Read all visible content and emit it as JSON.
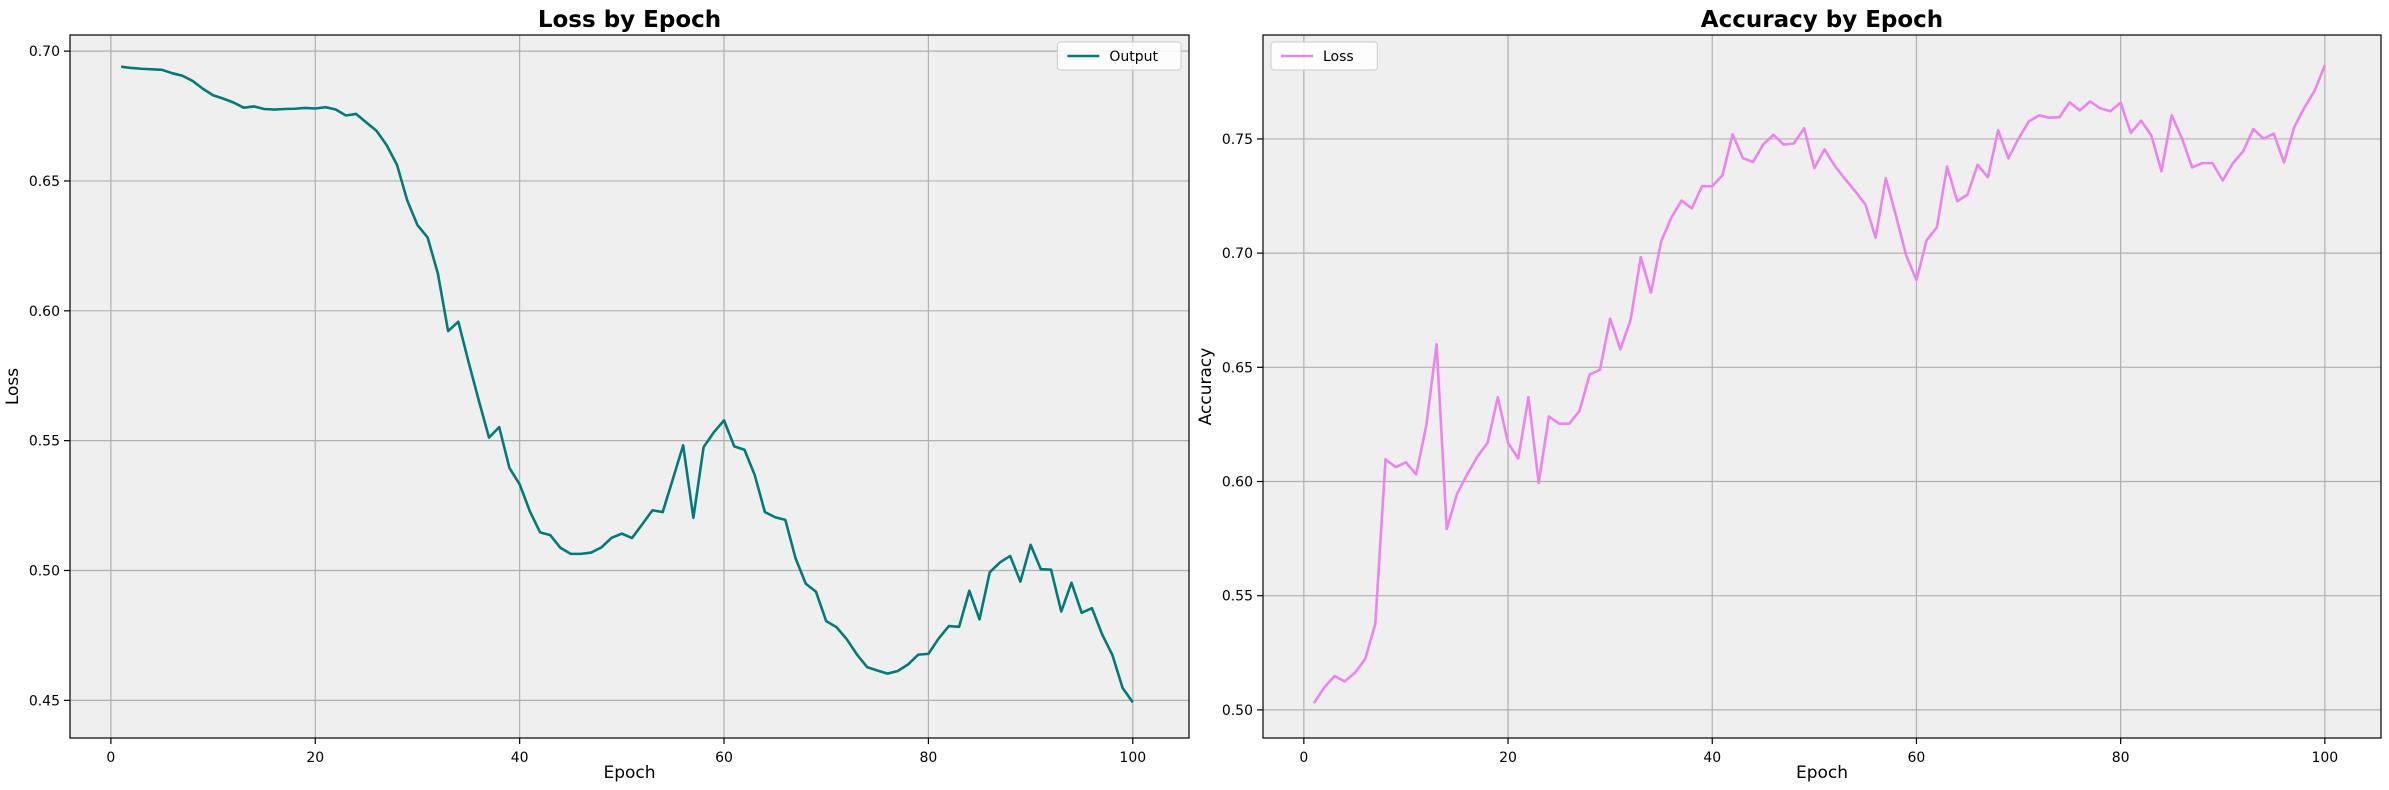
{
  "chart_data": [
    {
      "type": "line",
      "title": "Loss by Epoch",
      "xlabel": "Epoch",
      "ylabel": "Loss",
      "xlim": [
        -4,
        105.5
      ],
      "ylim": [
        0.4355,
        0.7062
      ],
      "xticks": [
        0,
        20,
        40,
        60,
        80,
        100
      ],
      "yticks": [
        0.45,
        0.5,
        0.55,
        0.6,
        0.65,
        0.7
      ],
      "ytick_labels": [
        "0.45",
        "0.50",
        "0.55",
        "0.60",
        "0.65",
        "0.70"
      ],
      "grid": true,
      "legend_position": "top-right",
      "colors": {
        "line": "#007b7b",
        "background": "#efefef"
      },
      "series": [
        {
          "name": "Output",
          "x": [
            1,
            2,
            3,
            4,
            5,
            6,
            7,
            8,
            9,
            10,
            11,
            12,
            13,
            14,
            15,
            16,
            17,
            18,
            19,
            20,
            21,
            22,
            23,
            24,
            25,
            26,
            27,
            28,
            29,
            30,
            31,
            32,
            33,
            34,
            35,
            36,
            37,
            38,
            39,
            40,
            41,
            42,
            43,
            44,
            45,
            46,
            47,
            48,
            49,
            50,
            51,
            52,
            53,
            54,
            55,
            56,
            57,
            58,
            59,
            60,
            61,
            62,
            63,
            64,
            65,
            66,
            67,
            68,
            69,
            70,
            71,
            72,
            73,
            74,
            75,
            76,
            77,
            78,
            79,
            80,
            81,
            82,
            83,
            84,
            85,
            86,
            87,
            88,
            89,
            90,
            91,
            92,
            93,
            94,
            95,
            96,
            97,
            98,
            99,
            100
          ],
          "y": [
            0.694,
            0.6935,
            0.6932,
            0.693,
            0.6928,
            0.6915,
            0.6905,
            0.6885,
            0.6855,
            0.683,
            0.6817,
            0.6802,
            0.6782,
            0.6787,
            0.6777,
            0.6775,
            0.6777,
            0.6778,
            0.6781,
            0.6779,
            0.6784,
            0.6775,
            0.6752,
            0.6758,
            0.6725,
            0.6693,
            0.6637,
            0.6562,
            0.6425,
            0.633,
            0.6282,
            0.6143,
            0.5922,
            0.5958,
            0.5803,
            0.5655,
            0.5512,
            0.5552,
            0.5395,
            0.5332,
            0.5228,
            0.5147,
            0.5136,
            0.5087,
            0.5064,
            0.5064,
            0.5069,
            0.5089,
            0.5126,
            0.5142,
            0.5125,
            0.5178,
            0.5232,
            0.5225,
            0.5353,
            0.5482,
            0.5203,
            0.5475,
            0.5532,
            0.5578,
            0.5478,
            0.5465,
            0.5368,
            0.5225,
            0.5205,
            0.5195,
            0.5047,
            0.4949,
            0.4918,
            0.4805,
            0.4782,
            0.4736,
            0.4677,
            0.4628,
            0.4615,
            0.4603,
            0.4613,
            0.4638,
            0.4676,
            0.4679,
            0.4738,
            0.4786,
            0.4783,
            0.4922,
            0.4812,
            0.4993,
            0.5031,
            0.5056,
            0.4957,
            0.5099,
            0.5005,
            0.5003,
            0.4842,
            0.4953,
            0.4837,
            0.4855,
            0.4754,
            0.4675,
            0.4548,
            0.4492
          ]
        }
      ]
    },
    {
      "type": "line",
      "title": "Accuracy by Epoch",
      "xlabel": "Epoch",
      "ylabel": "Accuracy",
      "xlim": [
        -4,
        105.5
      ],
      "ylim": [
        0.4877,
        0.7955
      ],
      "xticks": [
        0,
        20,
        40,
        60,
        80,
        100
      ],
      "yticks": [
        0.5,
        0.55,
        0.6,
        0.65,
        0.7,
        0.75
      ],
      "ytick_labels": [
        "0.50",
        "0.55",
        "0.60",
        "0.65",
        "0.70",
        "0.75"
      ],
      "grid": true,
      "legend_position": "top-left",
      "colors": {
        "line": "#ee82ee",
        "background": "#efefef"
      },
      "series": [
        {
          "name": "Loss",
          "x": [
            1,
            2,
            3,
            4,
            5,
            6,
            7,
            8,
            9,
            10,
            11,
            12,
            13,
            14,
            15,
            16,
            17,
            18,
            19,
            20,
            21,
            22,
            23,
            24,
            25,
            26,
            27,
            28,
            29,
            30,
            31,
            32,
            33,
            34,
            35,
            36,
            37,
            38,
            39,
            40,
            41,
            42,
            43,
            44,
            45,
            46,
            47,
            48,
            49,
            50,
            51,
            52,
            53,
            54,
            55,
            56,
            57,
            58,
            59,
            60,
            61,
            62,
            63,
            64,
            65,
            66,
            67,
            68,
            69,
            70,
            71,
            72,
            73,
            74,
            75,
            76,
            77,
            78,
            79,
            80,
            81,
            82,
            83,
            84,
            85,
            86,
            87,
            88,
            89,
            90,
            91,
            92,
            93,
            94,
            95,
            96,
            97,
            98,
            99,
            100
          ],
          "y": [
            0.503,
            0.5098,
            0.5148,
            0.5125,
            0.5162,
            0.5222,
            0.5376,
            0.6097,
            0.6063,
            0.6084,
            0.6031,
            0.6247,
            0.6601,
            0.5792,
            0.5945,
            0.6031,
            0.6109,
            0.617,
            0.6369,
            0.6169,
            0.6101,
            0.6369,
            0.5994,
            0.6285,
            0.6253,
            0.6253,
            0.6309,
            0.6469,
            0.6489,
            0.6713,
            0.6579,
            0.6707,
            0.6982,
            0.6827,
            0.7052,
            0.7156,
            0.723,
            0.7196,
            0.7293,
            0.7293,
            0.7341,
            0.752,
            0.7416,
            0.7399,
            0.7476,
            0.7518,
            0.7475,
            0.748,
            0.7547,
            0.7372,
            0.7454,
            0.7382,
            0.7325,
            0.7271,
            0.7213,
            0.7068,
            0.7328,
            0.7163,
            0.6989,
            0.6882,
            0.7056,
            0.7113,
            0.7379,
            0.7227,
            0.7256,
            0.7387,
            0.7332,
            0.7538,
            0.7415,
            0.7501,
            0.7576,
            0.7603,
            0.7593,
            0.7595,
            0.766,
            0.7625,
            0.7664,
            0.7634,
            0.7621,
            0.7659,
            0.7526,
            0.758,
            0.7516,
            0.7358,
            0.7603,
            0.7503,
            0.7375,
            0.7394,
            0.7394,
            0.7318,
            0.7394,
            0.7446,
            0.7543,
            0.7501,
            0.7523,
            0.7397,
            0.7551,
            0.7637,
            0.7711,
            0.7822
          ]
        }
      ]
    }
  ]
}
